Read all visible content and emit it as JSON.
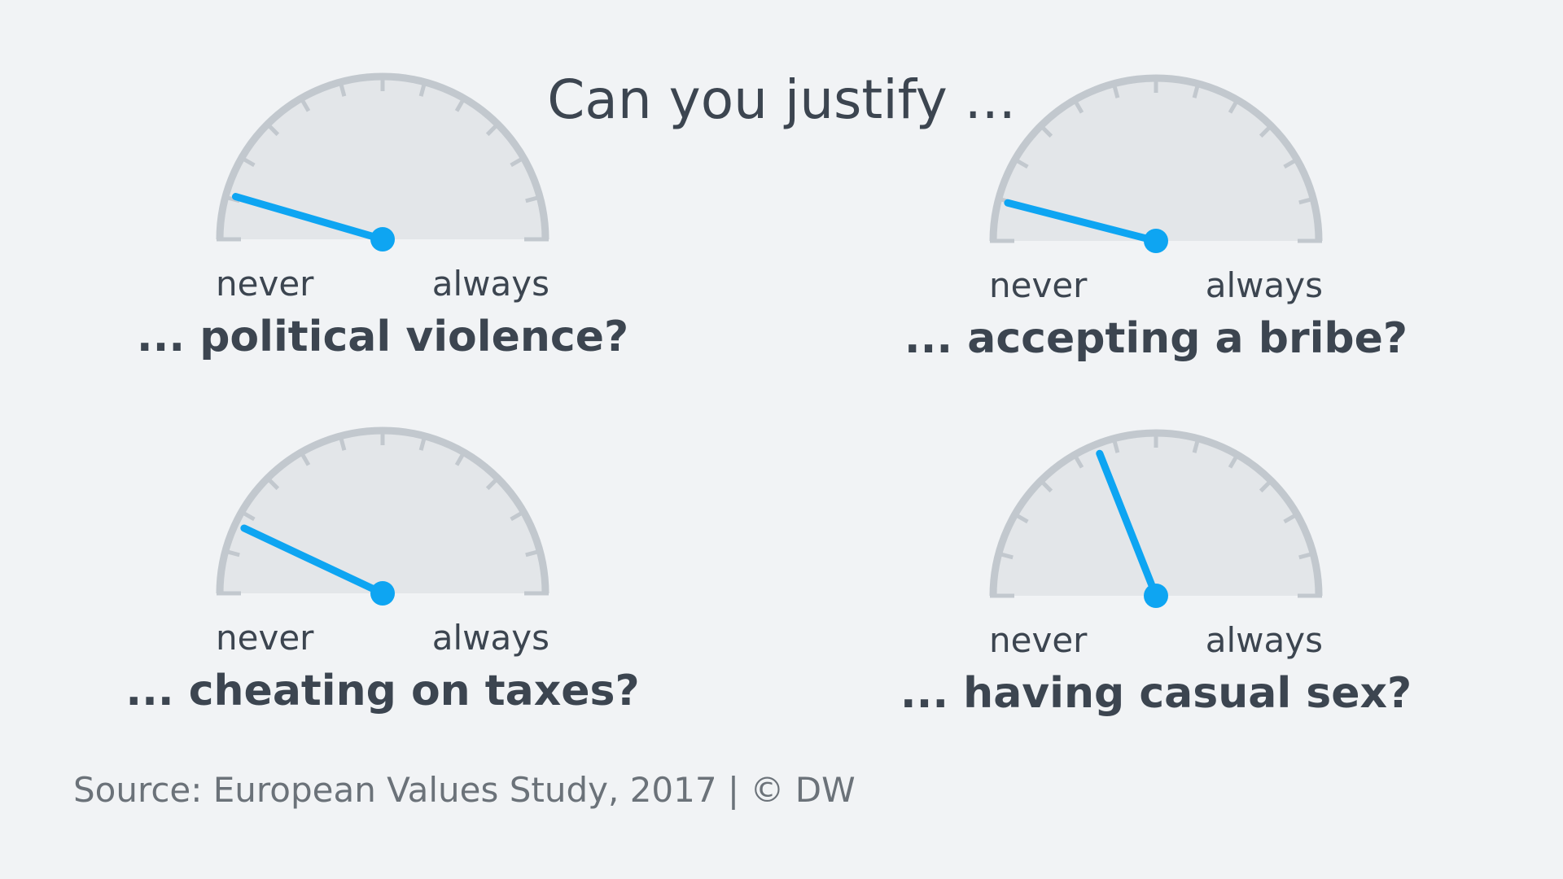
{
  "title": "Can you justify ...",
  "source": "Source: European Values Study, 2017 | © DW",
  "colors": {
    "needle": "#0ea5f2",
    "gauge_fill": "#e3e6e9",
    "gauge_rim": "#c2c8ce",
    "text": "#3c4550",
    "background": "#f1f3f5"
  },
  "chart_data": {
    "type": "gauge",
    "title": "Can you justify ...",
    "scale": {
      "min_label": "never",
      "max_label": "always",
      "min": 0,
      "max": 1
    },
    "gauges": [
      {
        "label": "... political violence?",
        "value": 0.09,
        "min_label": "never",
        "max_label": "always"
      },
      {
        "label": "... accepting a bribe?",
        "value": 0.08,
        "min_label": "never",
        "max_label": "always"
      },
      {
        "label": "... cheating on taxes?",
        "value": 0.14,
        "min_label": "never",
        "max_label": "always"
      },
      {
        "label": "... having casual sex?",
        "value": 0.38,
        "min_label": "never",
        "max_label": "always"
      }
    ]
  }
}
